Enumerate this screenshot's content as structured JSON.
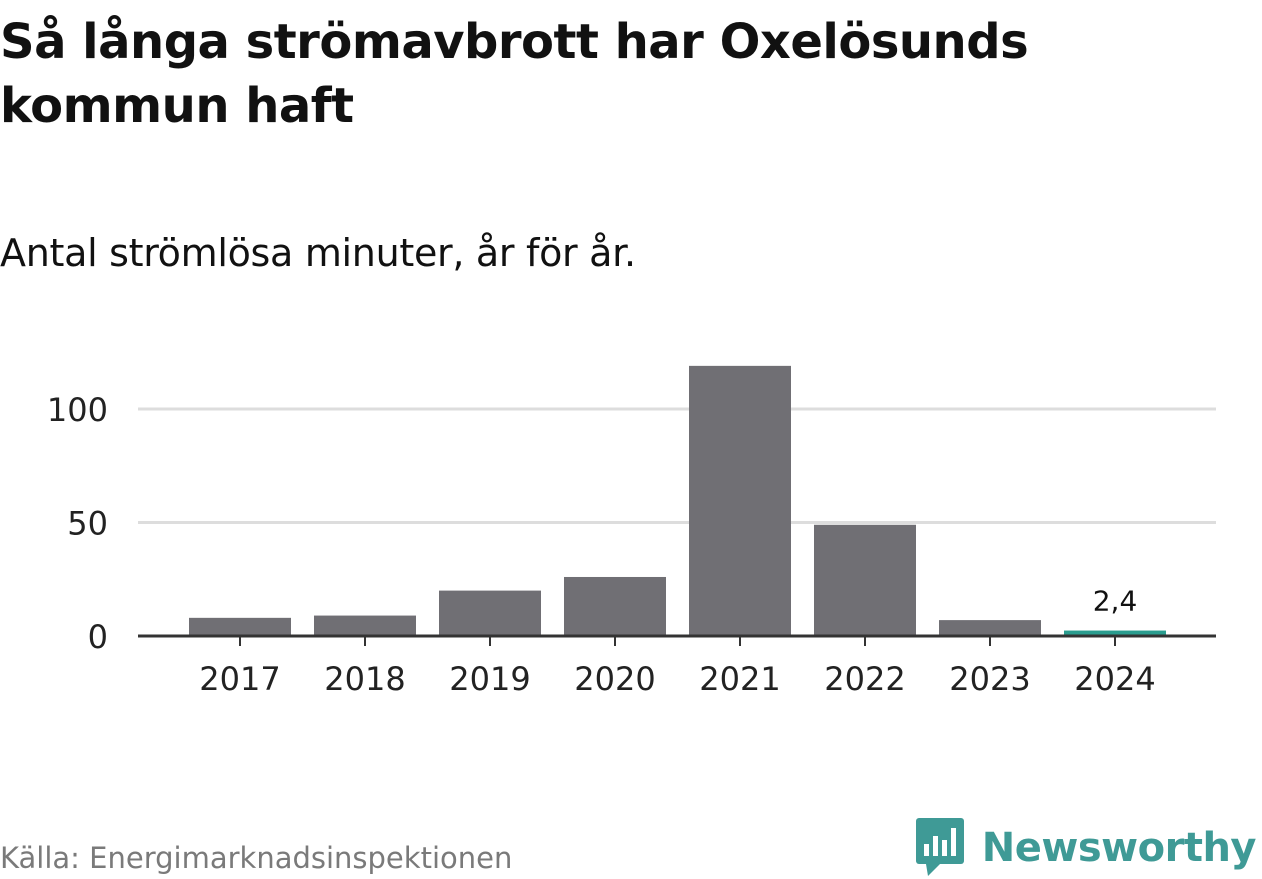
{
  "title": "Så långa strömavbrott har Oxelösunds kommun haft",
  "subtitle": "Antal strömlösa minuter, år för år.",
  "source": "Källa: Energimarknadsinspektionen",
  "brand": "Newsworthy",
  "colors": {
    "bar": "#706f74",
    "highlight": "#2a9d8f",
    "grid": "#dddddd",
    "axis": "#333333",
    "text": "#222222",
    "brand": "#3f9a96"
  },
  "chart_data": {
    "type": "bar",
    "title": "Så långa strömavbrott har Oxelösunds kommun haft",
    "subtitle": "Antal strömlösa minuter, år för år.",
    "xlabel": "",
    "ylabel": "",
    "categories": [
      "2017",
      "2018",
      "2019",
      "2020",
      "2021",
      "2022",
      "2023",
      "2024"
    ],
    "values": [
      8,
      9,
      20,
      26,
      119,
      49,
      7,
      2.4
    ],
    "highlight_index": 7,
    "data_labels": [
      {
        "index": 7,
        "text": "2,4"
      }
    ],
    "ylim": [
      0,
      120
    ],
    "yticks": [
      0,
      50,
      100
    ],
    "grid": true
  }
}
